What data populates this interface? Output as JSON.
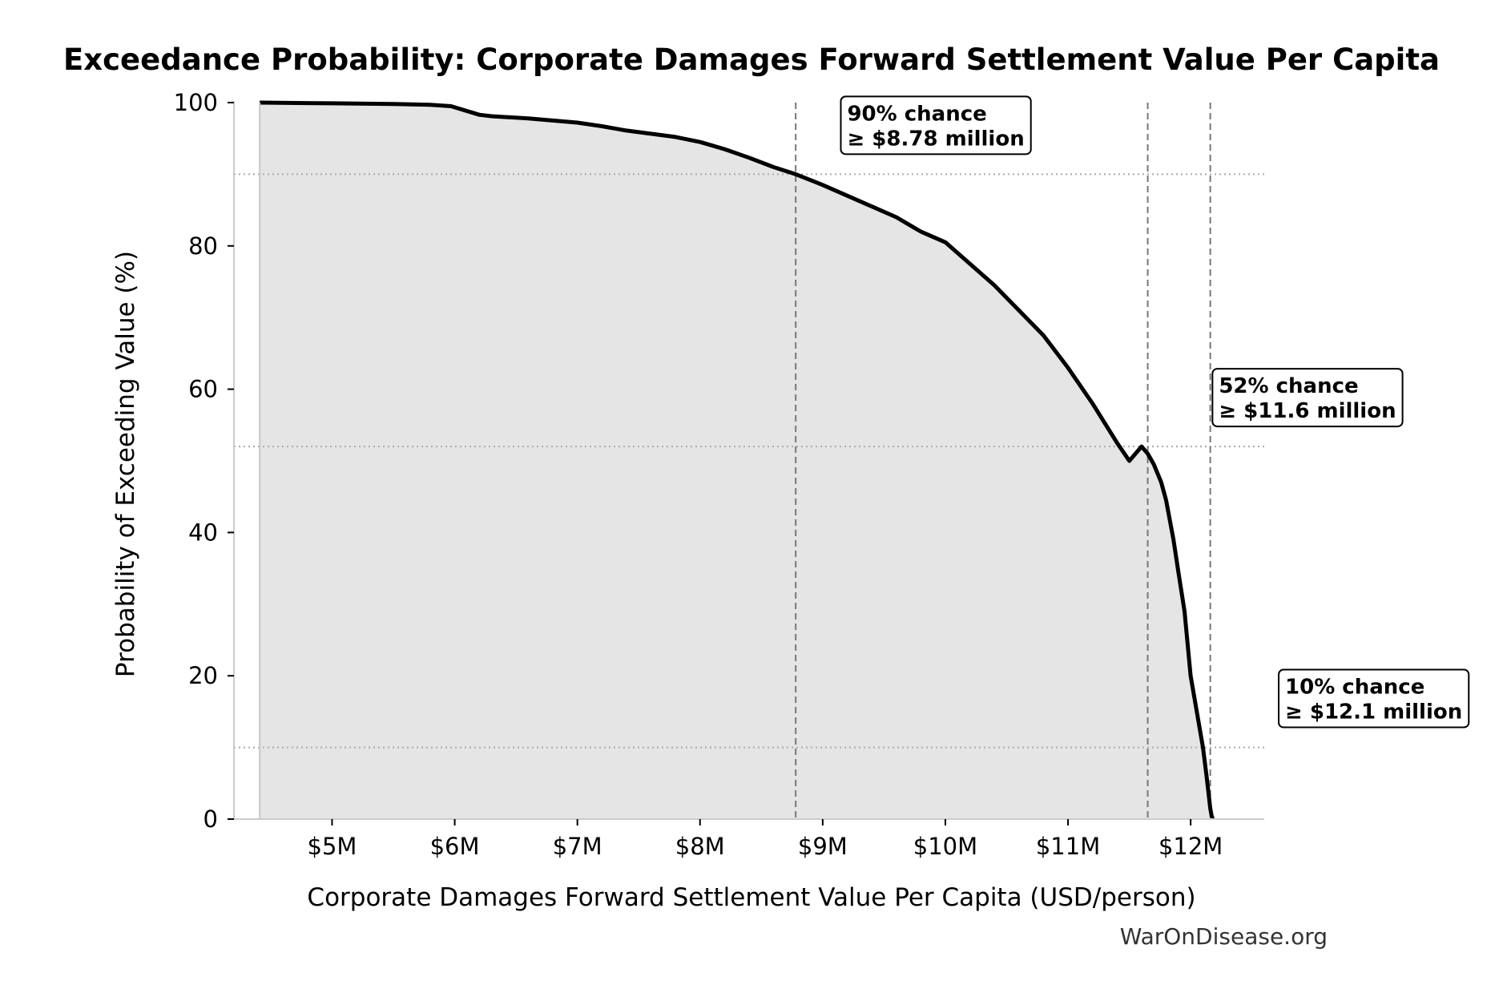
{
  "chart_data": {
    "type": "area",
    "title": "Exceedance Probability: Corporate Damages Forward Settlement Value Per Capita",
    "xlabel": "Corporate Damages Forward Settlement Value Per Capita (USD/person)",
    "ylabel": "Probability of Exceeding Value (%)",
    "xlim": [
      4.2,
      12.6
    ],
    "ylim": [
      0,
      100
    ],
    "x_unit": "million USD/person",
    "x_ticks": [
      5,
      6,
      7,
      8,
      9,
      10,
      11,
      12
    ],
    "x_tick_labels": [
      "$5M",
      "$6M",
      "$7M",
      "$8M",
      "$9M",
      "$10M",
      "$11M",
      "$12M"
    ],
    "y_ticks": [
      0,
      20,
      40,
      60,
      80,
      100
    ],
    "y_tick_labels": [
      "0",
      "20",
      "40",
      "60",
      "80",
      "100"
    ],
    "grid": false,
    "fill_color": "#e5e5e5",
    "line_color": "#000000",
    "series": [
      {
        "x": [
          4.41,
          5.0,
          5.5,
          5.8,
          5.97,
          6.2,
          6.3,
          6.6,
          7.0,
          7.2,
          7.4,
          7.8,
          8.0,
          8.2,
          8.4,
          8.6,
          8.78,
          9.0,
          9.2,
          9.4,
          9.6,
          9.8,
          10.0,
          10.2,
          10.4,
          10.6,
          10.8,
          11.0,
          11.2,
          11.4,
          11.5,
          11.6,
          11.65,
          11.7,
          11.76,
          11.8,
          11.86,
          11.9,
          11.95,
          12.0,
          12.05,
          12.08,
          12.1,
          12.13,
          12.15,
          12.16,
          12.17,
          12.18
        ],
        "y": [
          100,
          99.9,
          99.8,
          99.7,
          99.5,
          98.3,
          98.1,
          97.8,
          97.2,
          96.7,
          96.1,
          95.2,
          94.5,
          93.5,
          92.3,
          91.0,
          90,
          88.5,
          87.0,
          85.5,
          84.0,
          82.0,
          80.5,
          77.5,
          74.5,
          71.0,
          67.5,
          63.0,
          58.0,
          52.5,
          50.0,
          52.0,
          51.0,
          49.5,
          47.0,
          44.5,
          39.0,
          34.5,
          29.0,
          20.0,
          15.0,
          12.0,
          10.0,
          6.0,
          3.0,
          1.5,
          0.5,
          0.0
        ]
      }
    ],
    "hlines": [
      90,
      52,
      10
    ],
    "vlines": [
      8.78,
      11.65,
      12.16
    ],
    "annotations": [
      {
        "line1": "90% chance",
        "line2": "≥ $8.78 million",
        "x": 9.2,
        "y": 97.5
      },
      {
        "line1": "52% chance",
        "line2": "≥ $11.6 million",
        "x": 12.23,
        "y": 59.5
      },
      {
        "line1": "10% chance",
        "line2": "≥ $12.1 million",
        "x": 12.77,
        "y": 17.5
      }
    ]
  },
  "watermark": "WarOnDisease.org"
}
